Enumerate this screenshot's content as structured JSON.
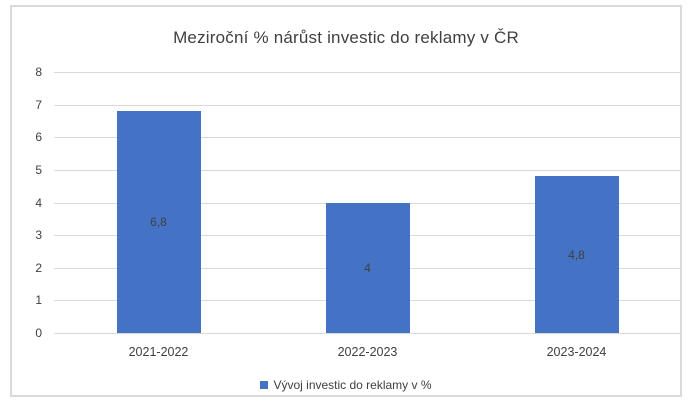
{
  "chart_data": {
    "type": "bar",
    "title": "Meziroční % nárůst investic do reklamy v ČR",
    "categories": [
      "2021-2022",
      "2022-2023",
      "2023-2024"
    ],
    "values": [
      6.8,
      4,
      4.8
    ],
    "value_labels": [
      "6,8",
      "4",
      "4,8"
    ],
    "series_name": "Vývoj investic do reklamy v %",
    "xlabel": "",
    "ylabel": "",
    "ylim": [
      0,
      8
    ],
    "ytick_step": 1,
    "grid": true,
    "legend_position": "bottom",
    "colors": {
      "bar": "#4472c4",
      "gridline": "#d9d9d9",
      "frame_border": "#d9d9d9",
      "text": "#404040",
      "background": "#ffffff"
    }
  }
}
